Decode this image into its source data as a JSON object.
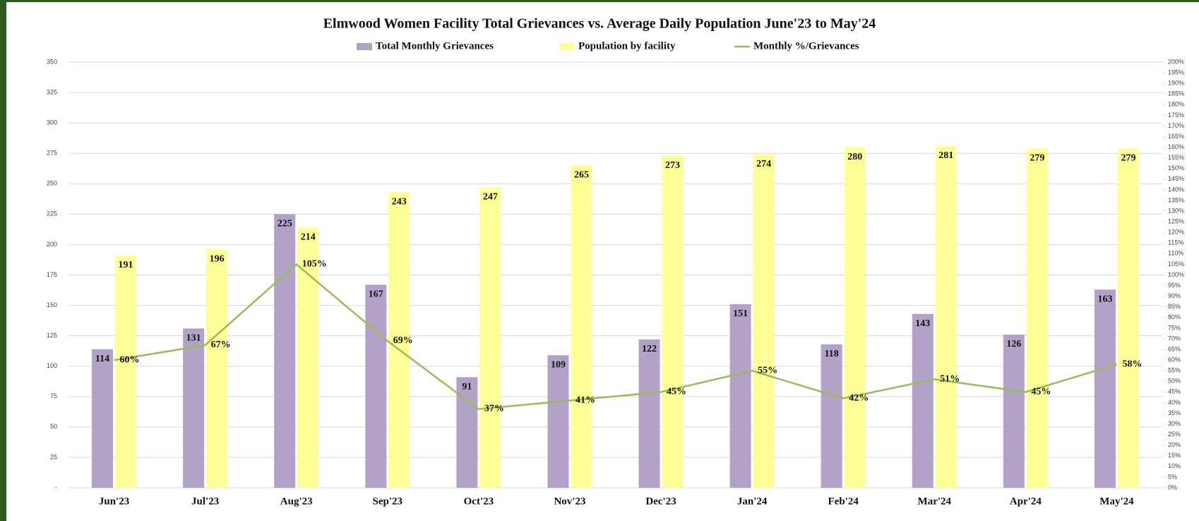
{
  "chart_data": {
    "type": "bar_line",
    "title": "Elmwood Women Facility Total Grievances vs. Average Daily Population June'23 to May'24",
    "categories": [
      "Jun'23",
      "Jul'23",
      "Aug'23",
      "Sep'23",
      "Oct'23",
      "Nov'23",
      "Dec'23",
      "Jan'24",
      "Feb'24",
      "Mar'24",
      "Apr'24",
      "May'24"
    ],
    "series": [
      {
        "name": "Total Monthly Grievances",
        "color": "#b3a2c7",
        "type": "bar",
        "values": [
          114,
          131,
          225,
          167,
          91,
          109,
          122,
          151,
          118,
          143,
          126,
          163
        ]
      },
      {
        "name": "Population by facility",
        "color": "#ffff99",
        "type": "bar",
        "values": [
          191,
          196,
          214,
          243,
          247,
          265,
          273,
          274,
          280,
          281,
          279,
          279
        ]
      },
      {
        "name": "Monthly %/Grievances",
        "color": "#9bbb59",
        "type": "line",
        "axis": "y2",
        "values": [
          60,
          67,
          105,
          69,
          37,
          41,
          45,
          55,
          42,
          51,
          45,
          58
        ],
        "value_labels": [
          "60%",
          "67%",
          "105%",
          "69%",
          "37%",
          "41%",
          "45%",
          "55%",
          "42%",
          "51%",
          "45%",
          "58%"
        ]
      }
    ],
    "ylim": [
      0,
      350
    ],
    "yticks": [
      {
        "value": 0,
        "label": "-"
      },
      25,
      50,
      75,
      100,
      125,
      150,
      175,
      200,
      225,
      250,
      275,
      300,
      325,
      350
    ],
    "y2lim": [
      0,
      200
    ],
    "y2ticks": [
      {
        "value": 0,
        "label": "0%"
      },
      {
        "value": 5,
        "label": "5%"
      },
      {
        "value": 10,
        "label": "10%"
      },
      {
        "value": 15,
        "label": "15%"
      },
      {
        "value": 20,
        "label": "20%"
      },
      {
        "value": 25,
        "label": "25%"
      },
      {
        "value": 30,
        "label": "30%"
      },
      {
        "value": 35,
        "label": "35%"
      },
      {
        "value": 40,
        "label": "40%"
      },
      {
        "value": 45,
        "label": "45%"
      },
      {
        "value": 50,
        "label": "50%"
      },
      {
        "value": 55,
        "label": "55%"
      },
      {
        "value": 60,
        "label": "60%"
      },
      {
        "value": 65,
        "label": "65%"
      },
      {
        "value": 70,
        "label": "70%"
      },
      {
        "value": 75,
        "label": "75%"
      },
      {
        "value": 80,
        "label": "80%"
      },
      {
        "value": 85,
        "label": "85%"
      },
      {
        "value": 90,
        "label": "90%"
      },
      {
        "value": 95,
        "label": "95%"
      },
      {
        "value": 100,
        "label": "100%"
      },
      {
        "value": 105,
        "label": "105%"
      },
      {
        "value": 110,
        "label": "110%"
      },
      {
        "value": 115,
        "label": "115%"
      },
      {
        "value": 120,
        "label": "120%"
      },
      {
        "value": 125,
        "label": "125%"
      },
      {
        "value": 130,
        "label": "130%"
      },
      {
        "value": 135,
        "label": "135%"
      },
      {
        "value": 140,
        "label": "140%"
      },
      {
        "value": 145,
        "label": "145%"
      },
      {
        "value": 150,
        "label": "150%"
      },
      {
        "value": 155,
        "label": "155%"
      },
      {
        "value": 160,
        "label": "160%"
      },
      {
        "value": 165,
        "label": "165%"
      },
      {
        "value": 170,
        "label": "170%"
      },
      {
        "value": 175,
        "label": "175%"
      },
      {
        "value": 180,
        "label": "180%"
      },
      {
        "value": 185,
        "label": "185%"
      },
      {
        "value": 190,
        "label": "190%"
      },
      {
        "value": 195,
        "label": "195%"
      },
      {
        "value": 200,
        "label": "200%"
      }
    ],
    "grid": true,
    "legend": "top"
  }
}
